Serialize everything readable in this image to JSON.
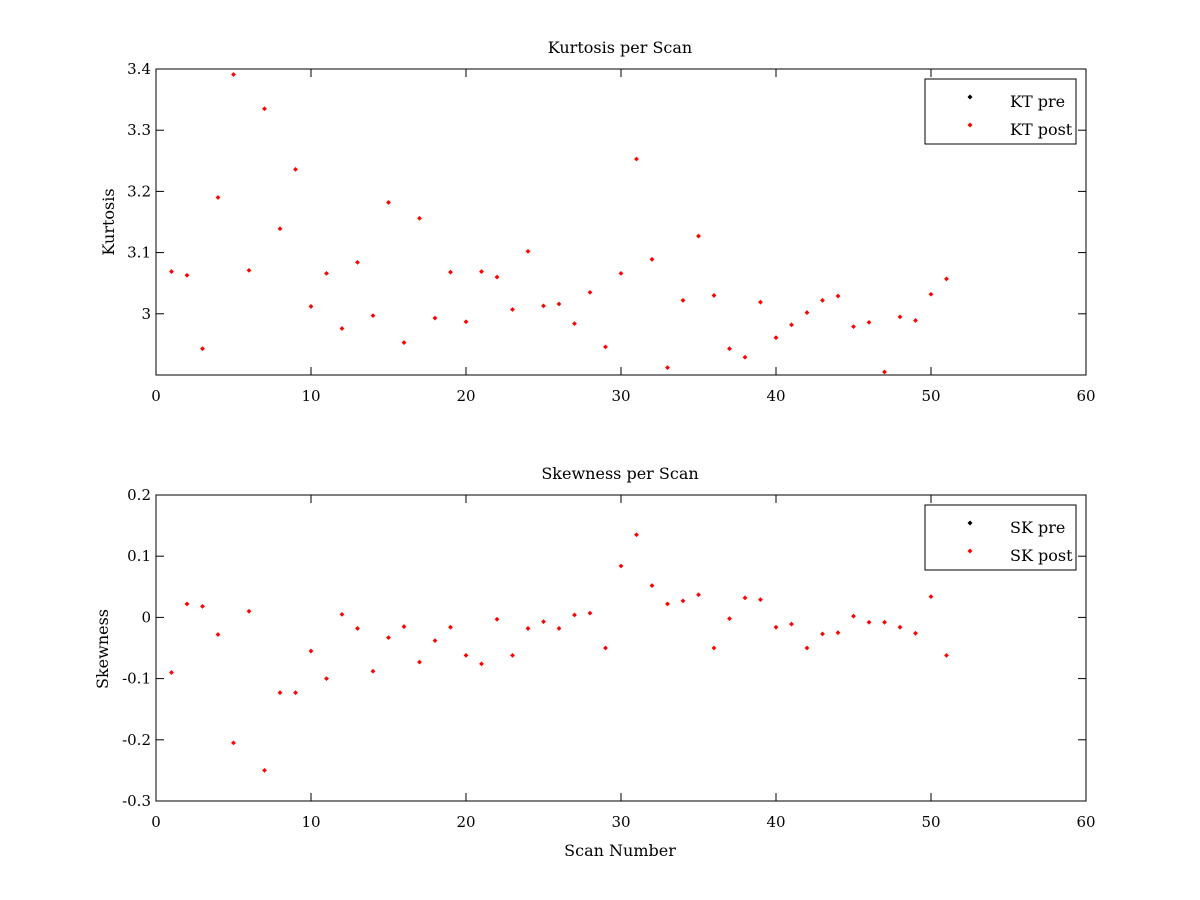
{
  "colors": {
    "pre": "#000000",
    "post": "#ff0000",
    "axes": "#000000",
    "background": "#ffffff"
  },
  "chart_data": [
    {
      "type": "scatter",
      "title": "Kurtosis per Scan",
      "xlabel": "",
      "ylabel": "Kurtosis",
      "xlim": [
        0,
        60
      ],
      "ylim": [
        2.9,
        3.4
      ],
      "xticks": [
        "0",
        "10",
        "20",
        "30",
        "40",
        "50",
        "60"
      ],
      "yticks": [
        "3",
        "3.1",
        "3.2",
        "3.3",
        "3.4"
      ],
      "legend_position": "top-right",
      "grid": false,
      "series": [
        {
          "name": "KT pre",
          "color": "#000000",
          "x": [],
          "y": []
        },
        {
          "name": "KT post",
          "color": "#ff0000",
          "x": [
            1,
            2,
            3,
            4,
            5,
            6,
            7,
            8,
            9,
            10,
            11,
            12,
            13,
            14,
            15,
            16,
            17,
            18,
            19,
            20,
            21,
            22,
            23,
            24,
            25,
            26,
            27,
            28,
            29,
            30,
            31,
            32,
            33,
            34,
            35,
            36,
            37,
            38,
            39,
            40,
            41,
            42,
            43,
            44,
            45,
            46,
            47,
            48,
            49,
            50,
            51
          ],
          "y": [
            3.069,
            3.063,
            2.943,
            3.19,
            3.391,
            3.071,
            3.335,
            3.139,
            3.236,
            3.012,
            3.066,
            2.976,
            3.084,
            2.997,
            3.182,
            2.953,
            3.156,
            2.993,
            3.068,
            2.987,
            3.069,
            3.06,
            3.007,
            3.102,
            3.013,
            3.016,
            2.984,
            3.035,
            2.946,
            3.066,
            3.253,
            3.089,
            2.912,
            3.022,
            3.127,
            3.03,
            2.943,
            2.929,
            3.019,
            2.961,
            2.982,
            3.002,
            3.022,
            3.029,
            2.979,
            2.986,
            2.905,
            2.995,
            2.989,
            3.032,
            3.057
          ]
        }
      ]
    },
    {
      "type": "scatter",
      "title": "Skewness per Scan",
      "xlabel": "Scan Number",
      "ylabel": "Skewness",
      "xlim": [
        0,
        60
      ],
      "ylim": [
        -0.3,
        0.2
      ],
      "xticks": [
        "0",
        "10",
        "20",
        "30",
        "40",
        "50",
        "60"
      ],
      "yticks": [
        "-0.3",
        "-0.2",
        "-0.1",
        "0",
        "0.1",
        "0.2"
      ],
      "legend_position": "top-right",
      "grid": false,
      "series": [
        {
          "name": "SK pre",
          "color": "#000000",
          "x": [],
          "y": []
        },
        {
          "name": "SK post",
          "color": "#ff0000",
          "x": [
            1,
            2,
            3,
            4,
            5,
            6,
            7,
            8,
            9,
            10,
            11,
            12,
            13,
            14,
            15,
            16,
            17,
            18,
            19,
            20,
            21,
            22,
            23,
            24,
            25,
            26,
            27,
            28,
            29,
            30,
            31,
            32,
            33,
            34,
            35,
            36,
            37,
            38,
            39,
            40,
            41,
            42,
            43,
            44,
            45,
            46,
            47,
            48,
            49,
            50,
            51
          ],
          "y": [
            -0.09,
            0.022,
            0.018,
            -0.028,
            -0.205,
            0.01,
            -0.25,
            -0.123,
            -0.123,
            -0.055,
            -0.1,
            0.005,
            -0.018,
            -0.088,
            -0.033,
            -0.015,
            -0.073,
            -0.038,
            -0.016,
            -0.062,
            -0.076,
            -0.003,
            -0.062,
            -0.018,
            -0.007,
            -0.018,
            0.004,
            0.007,
            -0.05,
            0.084,
            0.135,
            0.052,
            0.022,
            0.027,
            0.037,
            -0.05,
            -0.002,
            0.032,
            0.029,
            -0.016,
            -0.011,
            -0.05,
            -0.027,
            -0.025,
            0.002,
            -0.008,
            -0.008,
            -0.016,
            -0.026,
            0.034,
            -0.062
          ]
        }
      ]
    }
  ]
}
